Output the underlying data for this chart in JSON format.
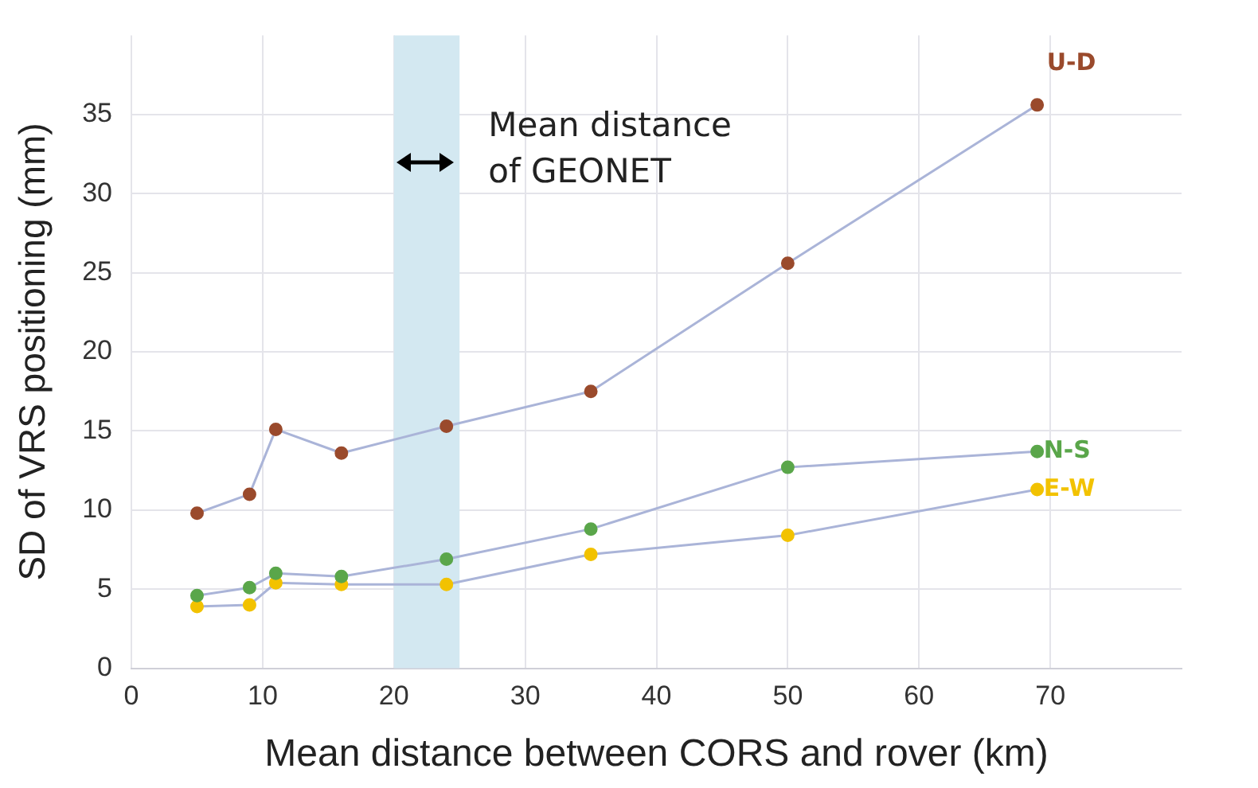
{
  "chart_data": {
    "type": "line",
    "xlabel": "Mean distance between CORS and rover (km)",
    "ylabel": "SD of VRS positioning (mm)",
    "xlim": [
      0,
      80
    ],
    "xticks": [
      0,
      10,
      20,
      30,
      40,
      50,
      60,
      70
    ],
    "ylim": [
      0,
      40
    ],
    "yticks": [
      0,
      5,
      10,
      15,
      20,
      25,
      30,
      35
    ],
    "x": [
      5,
      9,
      11,
      16,
      24,
      35,
      50,
      69
    ],
    "series": [
      {
        "name": "U-D",
        "color": "#9a4a2c",
        "values": [
          9.8,
          11.0,
          15.1,
          13.6,
          15.3,
          17.5,
          25.6,
          35.6
        ]
      },
      {
        "name": "N-S",
        "color": "#5aa64a",
        "values": [
          4.6,
          5.1,
          6.0,
          5.8,
          6.9,
          8.8,
          12.7,
          13.7
        ]
      },
      {
        "name": "E-W",
        "color": "#f2c200",
        "values": [
          3.9,
          4.0,
          5.4,
          5.3,
          5.3,
          7.2,
          8.4,
          11.3
        ]
      }
    ],
    "bands": [
      {
        "axis": "x",
        "from": 20,
        "to": 25,
        "label": "Mean distance\nof GEONET",
        "color": "#d3e8f1"
      }
    ],
    "grid": true,
    "legend": false,
    "marker": "circle",
    "line_style": "solid"
  }
}
